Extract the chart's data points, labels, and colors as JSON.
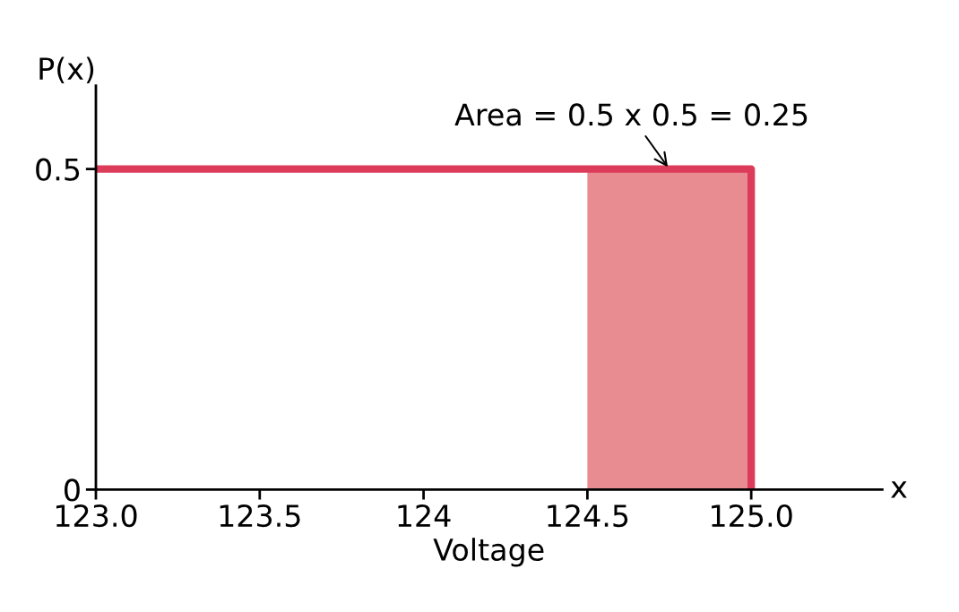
{
  "chart_data": {
    "type": "line",
    "xlabel": "Voltage",
    "ylabel": "P(x)",
    "series": [
      {
        "type": "area",
        "color": "#e88c92",
        "x": [
          124.5,
          125
        ],
        "values": [
          0.5,
          0.5
        ]
      },
      {
        "color": "#dc3c5a",
        "x": [
          123,
          125,
          125
        ],
        "values": [
          0.5,
          0.5,
          0
        ]
      }
    ],
    "annotations": [
      {
        "text": "Area = 0.5 x 0.5 = 0.25",
        "x": 124.75,
        "y": 0.5
      },
      "x"
    ],
    "xlim": [
      123,
      125.4
    ],
    "xticks": [
      {
        "value": 123,
        "label": "123.0"
      },
      123.5,
      124,
      124.5,
      {
        "value": 125,
        "label": "125.0"
      }
    ],
    "ylim": [
      0,
      0.63
    ],
    "yticks": [
      0,
      0.5
    ],
    "grid": false,
    "legend": false
  }
}
